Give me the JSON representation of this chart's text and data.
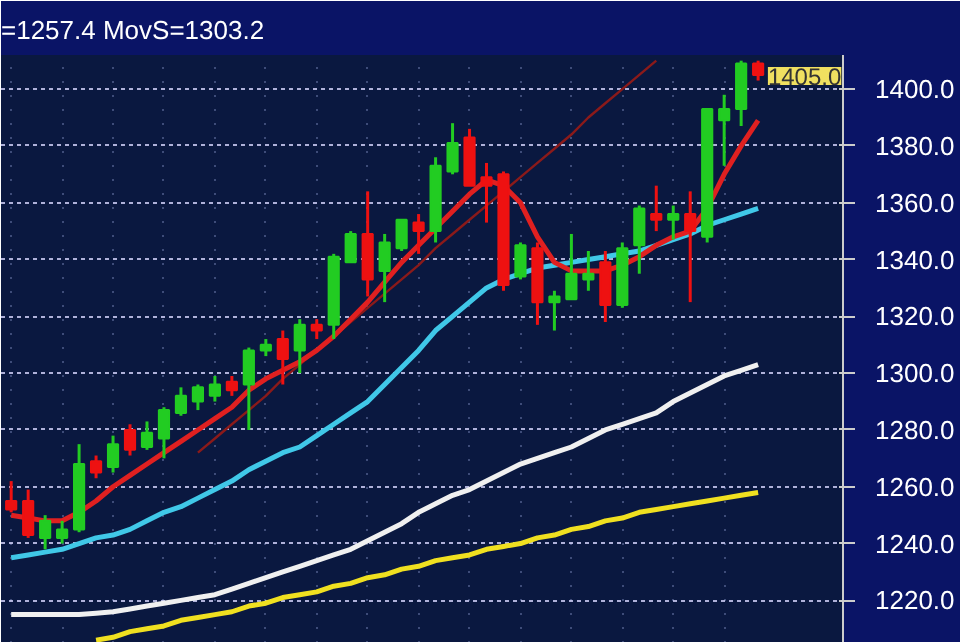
{
  "chart_data": {
    "type": "candlestick",
    "title": "=1257.4 MovS=1303.2",
    "categories": [
      null,
      null,
      null,
      null,
      null,
      null,
      null,
      null,
      null,
      null,
      null,
      null,
      null,
      null,
      null,
      null,
      null,
      null,
      null,
      null,
      null,
      null,
      null,
      null,
      null,
      null,
      null,
      null,
      null,
      null,
      null,
      null,
      null,
      null,
      null,
      null,
      null,
      null,
      null,
      null,
      null,
      null,
      null,
      null,
      null
    ],
    "ohlc": [
      [
        1255,
        1262,
        1251,
        1252
      ],
      [
        1255,
        1259,
        1242,
        1243
      ],
      [
        1242,
        1250,
        1238,
        1248
      ],
      [
        1242,
        1248,
        1240,
        1245
      ],
      [
        1245,
        1275,
        1244,
        1268
      ],
      [
        1269,
        1271,
        1263,
        1265
      ],
      [
        1267,
        1278,
        1265,
        1275
      ],
      [
        1280,
        1282,
        1271,
        1273
      ],
      [
        1274,
        1283,
        1273,
        1279
      ],
      [
        1277,
        1288,
        1270,
        1287
      ],
      [
        1286,
        1295,
        1285,
        1292
      ],
      [
        1290,
        1296,
        1287,
        1295
      ],
      [
        1292,
        1299,
        1290,
        1296
      ],
      [
        1297,
        1299,
        1292,
        1294
      ],
      [
        1296,
        1309,
        1280,
        1308
      ],
      [
        1308,
        1312,
        1306,
        1310
      ],
      [
        1312,
        1315,
        1296,
        1305
      ],
      [
        1308,
        1319,
        1300,
        1317
      ],
      [
        1317,
        1319,
        1312,
        1315
      ],
      [
        1317,
        1342,
        1312,
        1341
      ],
      [
        1339,
        1350,
        1339,
        1349
      ],
      [
        1349,
        1364,
        1327,
        1333
      ],
      [
        1336,
        1349,
        1325,
        1346
      ],
      [
        1344,
        1354,
        1343,
        1354
      ],
      [
        1353,
        1356,
        1342,
        1350
      ],
      [
        1350,
        1376,
        1346,
        1373
      ],
      [
        1371,
        1388,
        1370,
        1381
      ],
      [
        1383,
        1386,
        1366,
        1366
      ],
      [
        1369,
        1374,
        1353,
        1366
      ],
      [
        1370,
        1371,
        1329,
        1331
      ],
      [
        1334,
        1346,
        1333,
        1345
      ],
      [
        1344,
        1346,
        1317,
        1325
      ],
      [
        1325,
        1329,
        1315,
        1327
      ],
      [
        1326,
        1349,
        1326,
        1335
      ],
      [
        1333,
        1343,
        1329,
        1335
      ],
      [
        1339,
        1343,
        1318,
        1324
      ],
      [
        1324,
        1346,
        1323,
        1344
      ],
      [
        1345,
        1359,
        1335,
        1358
      ],
      [
        1356,
        1366,
        1350,
        1354
      ],
      [
        1354,
        1359,
        1347,
        1356
      ],
      [
        1356,
        1364,
        1325,
        1350
      ],
      [
        1348,
        1393,
        1346,
        1393
      ],
      [
        1389,
        1398,
        1373,
        1393
      ],
      [
        1393,
        1410,
        1387,
        1409
      ],
      [
        1409,
        1410,
        1403,
        1405
      ]
    ],
    "colors": [
      "#ee1111",
      "#ee1111",
      "#22cc22",
      "#22cc22",
      "#22cc22",
      "#ee1111",
      "#22cc22",
      "#ee1111",
      "#22cc22",
      "#22cc22",
      "#22cc22",
      "#22cc22",
      "#22cc22",
      "#ee1111",
      "#22cc22",
      "#22cc22",
      "#ee1111",
      "#22cc22",
      "#ee1111",
      "#22cc22",
      "#22cc22",
      "#ee1111",
      "#22cc22",
      "#22cc22",
      "#ee1111",
      "#22cc22",
      "#22cc22",
      "#ee1111",
      "#ee1111",
      "#ee1111",
      "#22cc22",
      "#ee1111",
      "#22cc22",
      "#22cc22",
      "#22cc22",
      "#ee1111",
      "#22cc22",
      "#22cc22",
      "#ee1111",
      "#22cc22",
      "#ee1111",
      "#22cc22",
      "#22cc22",
      "#22cc22",
      "#ee1111"
    ],
    "series": [
      {
        "type": "line",
        "color": "#f0e020",
        "values": [
          null,
          null,
          null,
          null,
          null,
          1206,
          1207,
          1209,
          1210,
          1211,
          1213,
          1214,
          1215,
          1216,
          1218,
          1219,
          1221,
          1222,
          1223,
          1225,
          1226,
          1228,
          1229,
          1231,
          1232,
          1234,
          1235,
          1236,
          1238,
          1239,
          1240,
          1242,
          1243,
          1245,
          1246,
          1248,
          1249,
          1251,
          1252,
          1253,
          1254,
          1255,
          1256,
          1257,
          1258
        ]
      },
      {
        "type": "line",
        "color": "#f0f0f0",
        "values": [
          1215,
          1215,
          1215,
          1215,
          1215,
          1215.5,
          1216,
          1217,
          1218,
          1219,
          1220,
          1221,
          1222,
          1224,
          1226,
          1228,
          1230,
          1232,
          1234,
          1236,
          1238,
          1241,
          1244,
          1247,
          1251,
          1254,
          1257,
          1259,
          1262,
          1265,
          1268,
          1270,
          1272,
          1274,
          1277,
          1280,
          1282,
          1284,
          1286,
          1290,
          1293,
          1296,
          1299,
          1301,
          1303
        ]
      },
      {
        "type": "line",
        "color": "#40c8e8",
        "values": [
          1235,
          1236,
          1237,
          1238,
          1240,
          1242,
          1243,
          1245,
          1248,
          1251,
          1253,
          1256,
          1259,
          1262,
          1266,
          1269,
          1272,
          1274,
          1278,
          1282,
          1286,
          1290,
          1296,
          1302,
          1308,
          1315,
          1320,
          1325,
          1330,
          1333,
          1335,
          1337,
          1338,
          1339,
          1340,
          1341,
          1342,
          1343,
          1345,
          1347,
          1349,
          1352,
          1354,
          1356,
          1358
        ]
      },
      {
        "type": "line",
        "color": "#8b1a1a",
        "values": [
          null,
          null,
          null,
          null,
          null,
          null,
          null,
          null,
          null,
          null,
          null,
          1272,
          1277,
          1282,
          1287,
          1292,
          1298,
          1303,
          1308,
          1313,
          1318,
          1323,
          1328,
          1333,
          1338,
          1344,
          1349,
          1354,
          1359,
          1364,
          1369,
          1374,
          1379,
          1384,
          1390,
          1395,
          1400,
          1405,
          1410,
          null,
          null,
          null,
          null,
          null,
          null
        ]
      },
      {
        "type": "line",
        "color": "#e02020",
        "values": [
          1250,
          1249,
          1248,
          1248,
          1251,
          1255,
          1260,
          1264,
          1268,
          1272,
          1276,
          1280,
          1284,
          1288,
          1294,
          1298,
          1301,
          1304,
          1308,
          1313,
          1319,
          1325,
          1332,
          1339,
          1345,
          1351,
          1357,
          1363,
          1368,
          1366,
          1360,
          1348,
          1339,
          1336,
          1336,
          1336,
          1338,
          1341,
          1345,
          1348,
          1350,
          1358,
          1370,
          1380,
          1389
        ]
      }
    ],
    "ylim": [
      1205,
      1412
    ],
    "yticks": [
      {
        "value": 1220,
        "label": "1220.0"
      },
      {
        "value": 1240,
        "label": "1240.0"
      },
      {
        "value": 1260,
        "label": "1260.0"
      },
      {
        "value": 1280,
        "label": "1280.0"
      },
      {
        "value": 1300,
        "label": "1300.0"
      },
      {
        "value": 1320,
        "label": "1320.0"
      },
      {
        "value": 1340,
        "label": "1340.0"
      },
      {
        "value": 1360,
        "label": "1360.0"
      },
      {
        "value": 1380,
        "label": "1380.0"
      },
      {
        "value": 1400,
        "label": "1400.0"
      }
    ],
    "annotations": [
      "1405.0"
    ],
    "grid": true,
    "tick_labels": "y"
  }
}
